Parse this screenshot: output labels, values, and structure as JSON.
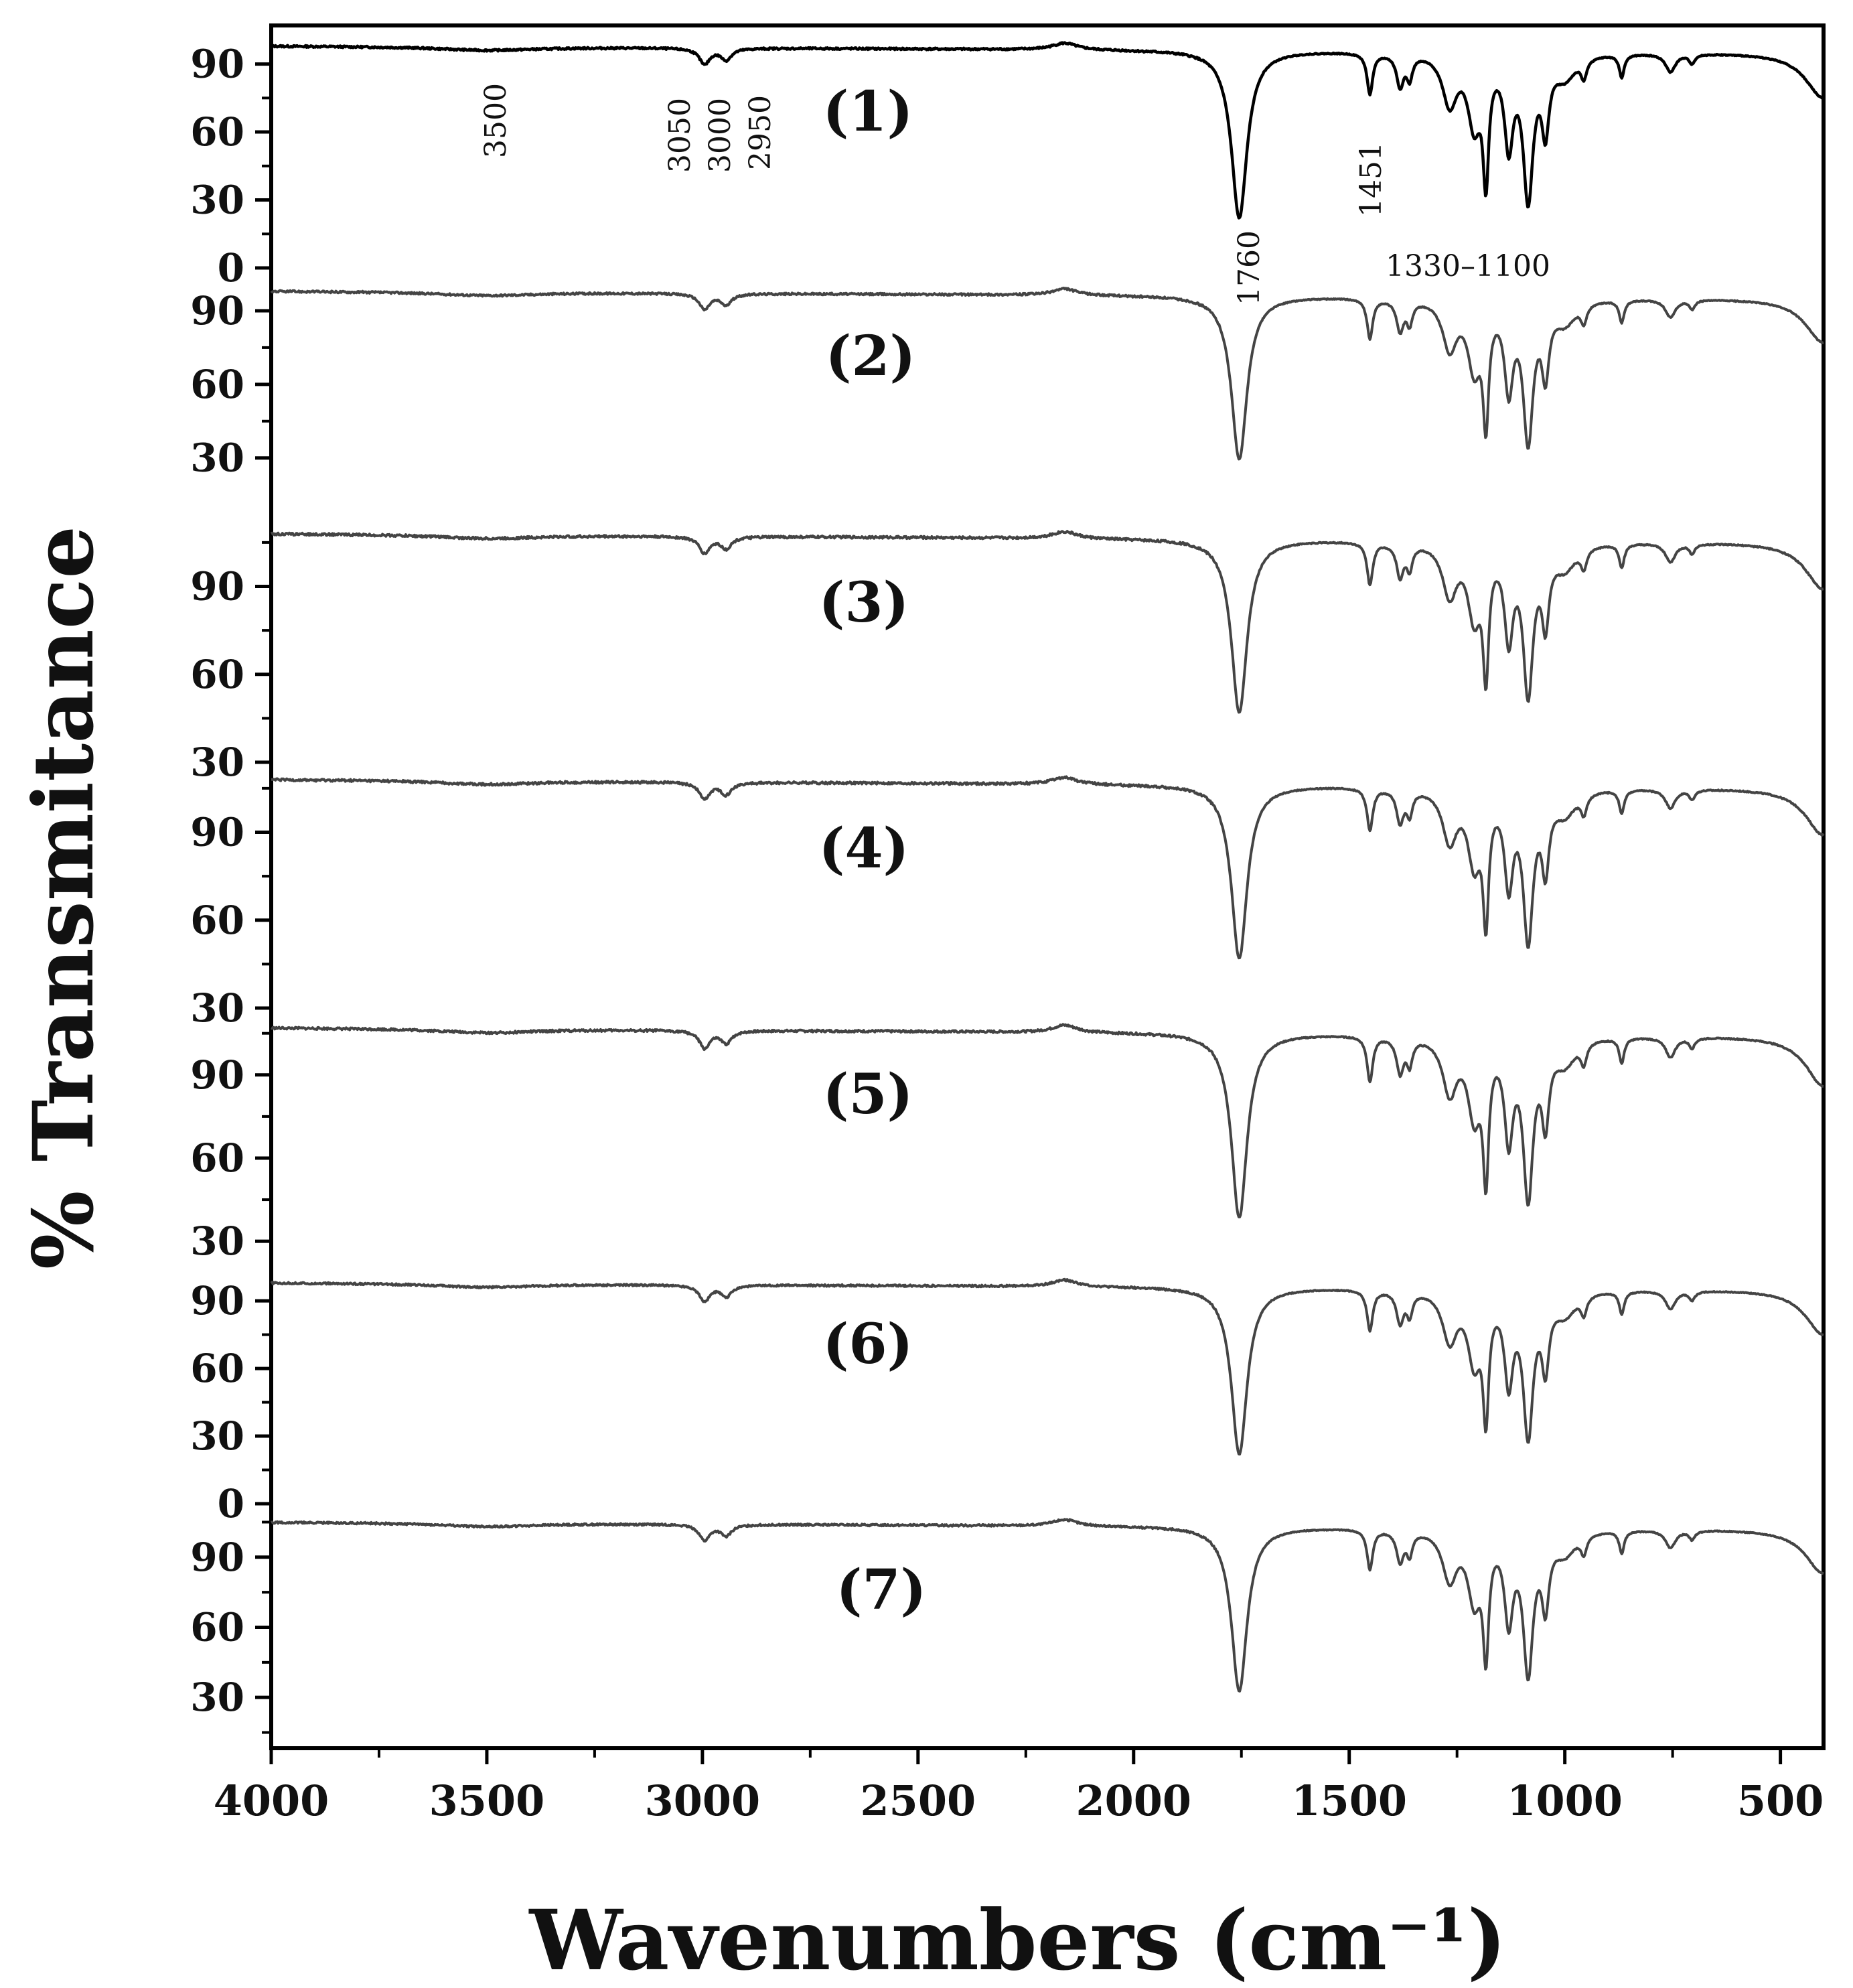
{
  "chart_data": {
    "type": "line",
    "xlabel": "Wavenumbers (cm⁻¹)",
    "ylabel": "% Transmitance",
    "xlim": [
      4000,
      400
    ],
    "xticks": [
      "4000",
      "3500",
      "3000",
      "2500",
      "2000",
      "1500",
      "1000",
      "500"
    ],
    "xtick_values": [
      4000,
      3500,
      3000,
      2500,
      2000,
      1500,
      1000,
      500
    ],
    "series": [
      {
        "name": "(1)",
        "color": "#000000",
        "ylim": [
          0,
          102
        ],
        "yticks": [
          "0",
          "30",
          "60",
          "90"
        ],
        "yvals": [
          0,
          30,
          60,
          90
        ],
        "baseline": 98,
        "scale": 1.0
      },
      {
        "name": "(2)",
        "color": "#444444",
        "ylim": [
          16,
          102
        ],
        "yticks": [
          "30",
          "60",
          "90"
        ],
        "yvals": [
          30,
          60,
          90
        ],
        "baseline": 98,
        "scale": 0.9
      },
      {
        "name": "(3)",
        "color": "#444444",
        "ylim": [
          30,
          110
        ],
        "yticks": [
          "30",
          "60",
          "90"
        ],
        "yvals": [
          30,
          60,
          90
        ],
        "baseline": 108,
        "scale": 0.8
      },
      {
        "name": "(4)",
        "color": "#444444",
        "ylim": [
          30,
          110
        ],
        "yticks": [
          "30",
          "60",
          "90"
        ],
        "yvals": [
          30,
          60,
          90
        ],
        "baseline": 108,
        "scale": 0.8
      },
      {
        "name": "(5)",
        "color": "#444444",
        "ylim": [
          24,
          110
        ],
        "yticks": [
          "30",
          "60",
          "90"
        ],
        "yvals": [
          30,
          60,
          90
        ],
        "baseline": 107,
        "scale": 0.9
      },
      {
        "name": "(6)",
        "color": "#444444",
        "ylim": [
          0,
          104
        ],
        "yticks": [
          "0",
          "30",
          "60",
          "90"
        ],
        "yvals": [
          0,
          30,
          60,
          90
        ],
        "baseline": 98,
        "scale": 1.0
      },
      {
        "name": "(7)",
        "color": "#444444",
        "ylim": [
          14,
          108
        ],
        "yticks": [
          "30",
          "60",
          "90"
        ],
        "yvals": [
          30,
          60,
          90
        ],
        "baseline": 105,
        "scale": 0.95
      }
    ],
    "bands": [
      {
        "center": 3500,
        "width": 140,
        "depth": 1.5
      },
      {
        "center": 2995,
        "width": 15,
        "depth": 7
      },
      {
        "center": 2945,
        "width": 15,
        "depth": 5
      },
      {
        "center": 2160,
        "width": 35,
        "depth": -3
      },
      {
        "center": 1755,
        "width": 22,
        "depth": 74
      },
      {
        "center": 1452,
        "width": 8,
        "depth": 18
      },
      {
        "center": 1382,
        "width": 10,
        "depth": 14
      },
      {
        "center": 1360,
        "width": 8,
        "depth": 10
      },
      {
        "center": 1267,
        "width": 20,
        "depth": 22
      },
      {
        "center": 1210,
        "width": 18,
        "depth": 30
      },
      {
        "center": 1183,
        "width": 8,
        "depth": 50
      },
      {
        "center": 1130,
        "width": 12,
        "depth": 38
      },
      {
        "center": 1085,
        "width": 14,
        "depth": 62
      },
      {
        "center": 1045,
        "width": 10,
        "depth": 30
      },
      {
        "center": 1000,
        "width": 30,
        "depth": 10
      },
      {
        "center": 956,
        "width": 8,
        "depth": 8
      },
      {
        "center": 868,
        "width": 7,
        "depth": 10
      },
      {
        "center": 755,
        "width": 14,
        "depth": 8
      },
      {
        "center": 705,
        "width": 8,
        "depth": 4
      },
      {
        "center": 400,
        "width": 50,
        "depth": 20
      }
    ],
    "annotations": [
      "3500",
      "3050",
      "3000",
      "2950",
      "1760",
      "1451",
      "1330–1100"
    ]
  }
}
